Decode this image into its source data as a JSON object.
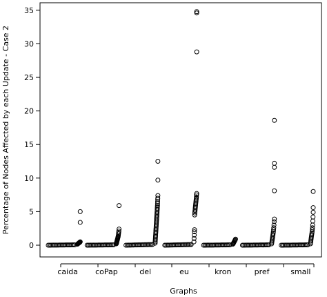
{
  "chart_data": {
    "type": "scatter",
    "title": "",
    "xlabel": "Graphs",
    "ylabel": "Percentage of Nodes Affected by each Update - Case 2",
    "ylim": [
      0,
      35.5
    ],
    "yticks": [
      0,
      5,
      10,
      15,
      20,
      25,
      30,
      35
    ],
    "categories": [
      "caida",
      "coPap",
      "del",
      "eu",
      "kron",
      "pref",
      "small"
    ],
    "grid": false,
    "legend": "none",
    "marker": "open-circle",
    "series": [
      {
        "group": "caida",
        "baseline_max": 0.1,
        "tail": [
          0.15,
          0.2,
          0.25,
          0.3,
          0.35,
          0.4,
          0.45,
          0.5
        ],
        "outliers": [
          3.4,
          5.0
        ]
      },
      {
        "group": "coPap",
        "baseline_max": 0.1,
        "tail": [
          0.2,
          0.3,
          0.4,
          0.5,
          0.6,
          0.7,
          0.8,
          0.9,
          1.0,
          1.1,
          1.2,
          1.3,
          1.5,
          1.7,
          1.9,
          2.1,
          2.4
        ],
        "outliers": [
          5.9
        ]
      },
      {
        "group": "del",
        "baseline_max": 0.2,
        "tail": [
          0.3,
          0.5,
          0.7,
          0.9,
          1.1,
          1.3,
          1.5,
          1.7,
          1.9,
          2.1,
          2.3,
          2.5,
          2.7,
          2.9,
          3.1,
          3.3,
          3.5,
          3.7,
          3.9,
          4.1,
          4.3,
          4.5,
          4.7,
          4.9,
          5.1,
          5.3,
          5.5,
          5.7,
          5.9,
          6.2,
          6.5,
          6.8,
          7.0,
          7.4
        ],
        "outliers": [
          9.7,
          12.5
        ]
      },
      {
        "group": "eu",
        "baseline_max": 0.2,
        "tail": [
          0.5,
          1.0,
          1.5,
          2.0,
          2.3,
          4.5,
          4.8,
          5.0,
          5.2,
          5.4,
          5.6,
          5.8,
          6.0,
          6.2,
          6.4,
          6.6,
          6.8,
          7.0,
          7.2,
          7.5,
          7.7
        ],
        "outliers": [
          28.8,
          34.6,
          34.8
        ]
      },
      {
        "group": "kron",
        "baseline_max": 0.1,
        "tail": [
          0.15,
          0.2,
          0.3,
          0.4,
          0.5,
          0.6,
          0.7,
          0.8,
          0.9
        ],
        "outliers": []
      },
      {
        "group": "pref",
        "baseline_max": 0.1,
        "tail": [
          0.2,
          0.4,
          0.6,
          0.8,
          1.0,
          1.2,
          1.4,
          1.6,
          1.8,
          2.0,
          2.3,
          2.6,
          3.0,
          3.5,
          3.9
        ],
        "outliers": [
          8.1,
          11.6,
          12.2,
          18.6
        ]
      },
      {
        "group": "small",
        "baseline_max": 0.1,
        "tail": [
          0.2,
          0.4,
          0.6,
          0.8,
          1.0,
          1.2,
          1.4,
          1.6,
          1.8,
          2.0,
          2.3,
          2.6,
          3.0,
          3.6,
          4.2,
          4.9
        ],
        "outliers": [
          5.6,
          8.0
        ]
      }
    ]
  }
}
